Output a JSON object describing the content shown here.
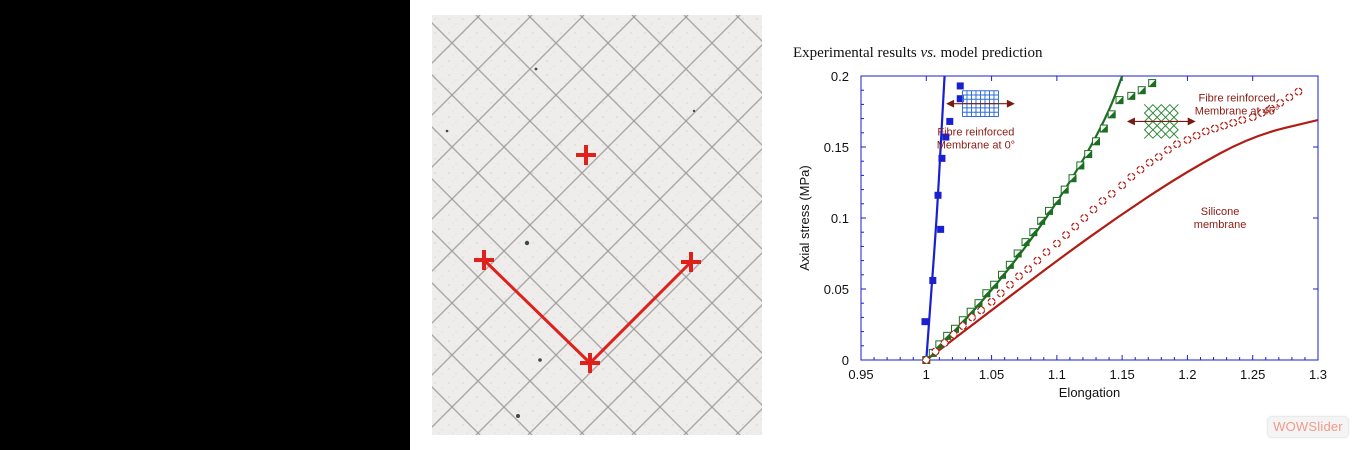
{
  "title_prefix": "Experimental results ",
  "title_vs": "vs.",
  "title_suffix": " model prediction",
  "watermark": "WOWSlider",
  "photo": {
    "description_icon": "grid-membrane-photo",
    "marker_color": "#e0201a"
  },
  "colors": {
    "blue": "#1a1fd0",
    "green": "#1c6e22",
    "red": "#b01d14",
    "annotation": "#8b1a12"
  },
  "chart_data": {
    "type": "scatter",
    "xlabel": "Elongation",
    "ylabel": "Axial stress (MPa)",
    "xlim": [
      0.95,
      1.3
    ],
    "ylim": [
      0,
      0.2
    ],
    "xticks": [
      0.95,
      1,
      1.05,
      1.1,
      1.15,
      1.2,
      1.25,
      1.3
    ],
    "yticks": [
      0,
      0.05,
      0.1,
      0.15,
      0.2
    ],
    "xtick_labels": [
      "0.95",
      "1",
      "1.05",
      "1.1",
      "1.15",
      "1.2",
      "1.25",
      "1.3"
    ],
    "ytick_labels": [
      "0",
      "0.05",
      "0.1",
      "0.15",
      "0.2"
    ],
    "grid": false,
    "series": [
      {
        "key": "blue",
        "marker": "filled-square",
        "color": "#1a1fd0",
        "points": [
          [
            1.0,
            0.0
          ],
          [
            0.999,
            0.027
          ],
          [
            1.005,
            0.056
          ],
          [
            1.009,
            0.116
          ],
          [
            1.011,
            0.092
          ],
          [
            1.012,
            0.142
          ],
          [
            1.015,
            0.157
          ],
          [
            1.018,
            0.168
          ],
          [
            1.026,
            0.184
          ],
          [
            1.026,
            0.193
          ]
        ],
        "curve": [
          [
            1.0,
            0.0
          ],
          [
            1.004,
            0.05
          ],
          [
            1.008,
            0.1
          ],
          [
            1.011,
            0.15
          ],
          [
            1.014,
            0.2
          ]
        ]
      },
      {
        "key": "green",
        "marker": "half-filled-square",
        "color": "#1c6e22",
        "points": [
          [
            1.0,
            0.0
          ],
          [
            1.005,
            0.005
          ],
          [
            1.01,
            0.011
          ],
          [
            1.016,
            0.017
          ],
          [
            1.022,
            0.022
          ],
          [
            1.028,
            0.028
          ],
          [
            1.034,
            0.034
          ],
          [
            1.04,
            0.04
          ],
          [
            1.046,
            0.047
          ],
          [
            1.052,
            0.053
          ],
          [
            1.058,
            0.06
          ],
          [
            1.064,
            0.067
          ],
          [
            1.07,
            0.075
          ],
          [
            1.076,
            0.083
          ],
          [
            1.082,
            0.09
          ],
          [
            1.088,
            0.098
          ],
          [
            1.094,
            0.105
          ],
          [
            1.1,
            0.112
          ],
          [
            1.106,
            0.12
          ],
          [
            1.112,
            0.128
          ],
          [
            1.118,
            0.137
          ],
          [
            1.124,
            0.145
          ],
          [
            1.13,
            0.154
          ],
          [
            1.136,
            0.163
          ],
          [
            1.142,
            0.173
          ],
          [
            1.148,
            0.183
          ],
          [
            1.157,
            0.186
          ],
          [
            1.165,
            0.19
          ],
          [
            1.173,
            0.195
          ]
        ],
        "curve": [
          [
            1.0,
            0.0
          ],
          [
            1.03,
            0.028
          ],
          [
            1.06,
            0.06
          ],
          [
            1.09,
            0.097
          ],
          [
            1.12,
            0.14
          ],
          [
            1.14,
            0.175
          ],
          [
            1.15,
            0.2
          ]
        ]
      },
      {
        "key": "red",
        "marker": "open-circle",
        "color": "#b01d14",
        "points": [
          [
            1.0,
            0.0
          ],
          [
            1.007,
            0.006
          ],
          [
            1.014,
            0.012
          ],
          [
            1.021,
            0.018
          ],
          [
            1.028,
            0.024
          ],
          [
            1.035,
            0.03
          ],
          [
            1.042,
            0.035
          ],
          [
            1.05,
            0.041
          ],
          [
            1.057,
            0.047
          ],
          [
            1.064,
            0.053
          ],
          [
            1.071,
            0.059
          ],
          [
            1.078,
            0.064
          ],
          [
            1.085,
            0.07
          ],
          [
            1.092,
            0.076
          ],
          [
            1.1,
            0.082
          ],
          [
            1.107,
            0.088
          ],
          [
            1.114,
            0.094
          ],
          [
            1.121,
            0.1
          ],
          [
            1.128,
            0.106
          ],
          [
            1.135,
            0.112
          ],
          [
            1.142,
            0.117
          ],
          [
            1.15,
            0.123
          ],
          [
            1.157,
            0.129
          ],
          [
            1.164,
            0.134
          ],
          [
            1.171,
            0.139
          ],
          [
            1.178,
            0.143
          ],
          [
            1.185,
            0.148
          ],
          [
            1.192,
            0.152
          ],
          [
            1.2,
            0.155
          ],
          [
            1.207,
            0.158
          ],
          [
            1.214,
            0.161
          ],
          [
            1.221,
            0.163
          ],
          [
            1.228,
            0.165
          ],
          [
            1.235,
            0.167
          ],
          [
            1.242,
            0.169
          ],
          [
            1.25,
            0.171
          ],
          [
            1.257,
            0.174
          ],
          [
            1.264,
            0.177
          ],
          [
            1.271,
            0.181
          ],
          [
            1.278,
            0.185
          ],
          [
            1.285,
            0.189
          ]
        ],
        "curve": [
          [
            1.0,
            0.0
          ],
          [
            1.05,
            0.035
          ],
          [
            1.1,
            0.07
          ],
          [
            1.15,
            0.103
          ],
          [
            1.2,
            0.133
          ],
          [
            1.25,
            0.158
          ],
          [
            1.3,
            0.169
          ]
        ]
      }
    ],
    "annotations": [
      {
        "key": "fibre0",
        "lines": [
          "Fibre reinforced",
          "Membrane at 0°"
        ]
      },
      {
        "key": "fibre45",
        "lines": [
          "Fibre reinforced",
          "Membrane at 45°"
        ]
      },
      {
        "key": "silicone",
        "lines": [
          "Silicone",
          "membrane"
        ]
      }
    ]
  }
}
